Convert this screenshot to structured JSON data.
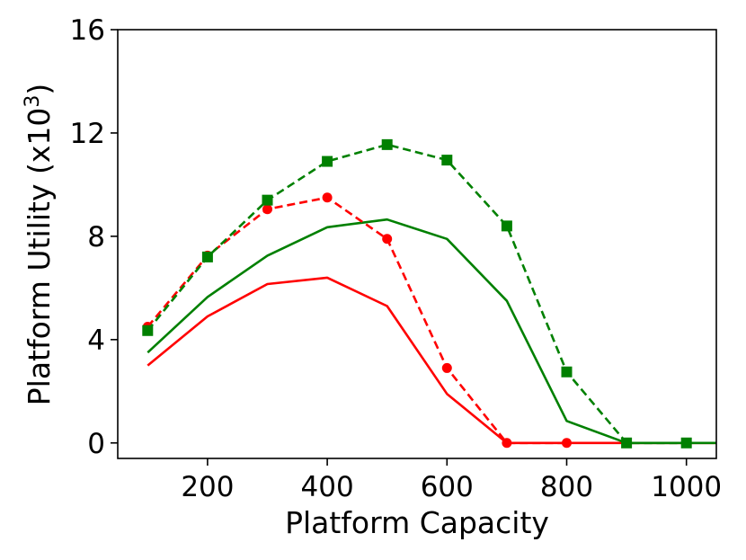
{
  "chart_data": {
    "type": "line",
    "xlabel": "Platform Capacity",
    "ylabel": "Platform Utility (x10",
    "ylabel_sup": "3",
    "ylabel_suffix": ")",
    "xlim": [
      50,
      1050
    ],
    "ylim": [
      -0.6,
      16
    ],
    "xticks": [
      200,
      400,
      600,
      800,
      1000
    ],
    "yticks": [
      0,
      4,
      8,
      12,
      16
    ],
    "grid": false,
    "series": [
      {
        "color": "#ff0000",
        "linestyle": "solid",
        "marker": "none",
        "x": [
          100,
          200,
          300,
          400,
          500,
          600,
          700,
          800,
          900,
          1000,
          1050
        ],
        "values": [
          3.0,
          4.9,
          6.15,
          6.4,
          5.3,
          1.9,
          0.0,
          0.0,
          0.0,
          0.0,
          0.0
        ]
      },
      {
        "color": "#008000",
        "linestyle": "solid",
        "marker": "none",
        "x": [
          100,
          200,
          300,
          400,
          500,
          600,
          700,
          800,
          900,
          1000,
          1050
        ],
        "values": [
          3.5,
          5.65,
          7.25,
          8.35,
          8.65,
          7.9,
          5.5,
          0.85,
          0.0,
          0.0,
          0.0
        ]
      },
      {
        "color": "#ff0000",
        "linestyle": "dashed",
        "marker": "circle",
        "x": [
          100,
          200,
          300,
          400,
          500,
          600,
          700,
          800
        ],
        "values": [
          4.5,
          7.25,
          9.05,
          9.5,
          7.9,
          2.9,
          0.0,
          0.0
        ]
      },
      {
        "color": "#008000",
        "linestyle": "dashed",
        "marker": "square",
        "x": [
          100,
          200,
          300,
          400,
          500,
          600,
          700,
          800,
          900,
          1000
        ],
        "values": [
          4.35,
          7.2,
          9.4,
          10.9,
          11.55,
          10.95,
          8.4,
          2.75,
          0.0,
          0.0
        ]
      }
    ]
  }
}
